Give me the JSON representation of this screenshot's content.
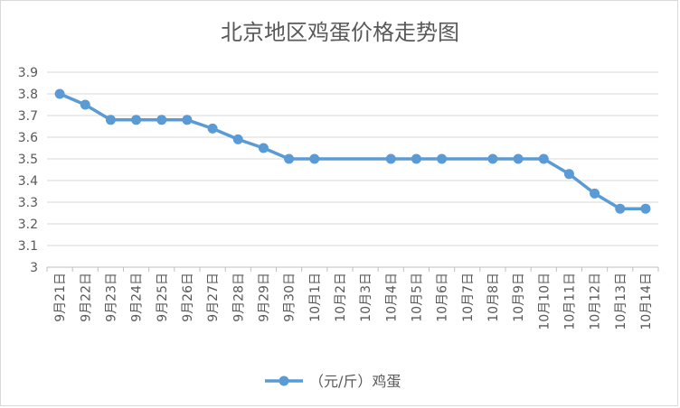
{
  "chart_data": {
    "type": "line",
    "title": "北京地区鸡蛋价格走势图",
    "xlabel": "",
    "ylabel": "",
    "ylim": [
      3,
      3.9
    ],
    "yticks": [
      "3",
      "3.1",
      "3.2",
      "3.3",
      "3.4",
      "3.5",
      "3.6",
      "3.7",
      "3.8",
      "3.9"
    ],
    "categories": [
      "9月21日",
      "9月22日",
      "9月23日",
      "9月24日",
      "9月25日",
      "9月26日",
      "9月27日",
      "9月28日",
      "9月29日",
      "9月30日",
      "10月1日",
      "10月2日",
      "10月3日",
      "10月4日",
      "10月5日",
      "10月6日",
      "10月7日",
      "10月8日",
      "10月9日",
      "10月10日",
      "10月11日",
      "10月12日",
      "10月13日",
      "10月14日"
    ],
    "series": [
      {
        "name": "（元/斤）鸡蛋",
        "color": "#5b9bd5",
        "values": [
          3.8,
          3.75,
          3.68,
          3.68,
          3.68,
          3.68,
          3.64,
          3.59,
          3.55,
          3.5,
          3.5,
          null,
          null,
          3.5,
          3.5,
          3.5,
          null,
          3.5,
          3.5,
          3.5,
          3.43,
          3.34,
          3.27,
          3.27
        ]
      }
    ],
    "grid": true,
    "legend": "bottom"
  }
}
